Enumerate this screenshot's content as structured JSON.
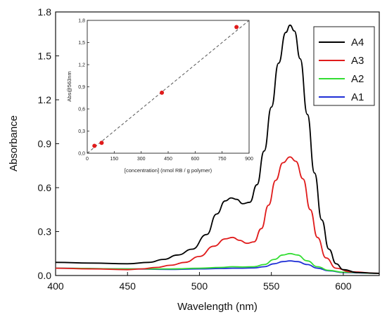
{
  "chart_data": [
    {
      "type": "line",
      "title": "",
      "xlabel": "Wavelength (nm)",
      "ylabel": "Absorbance",
      "xlim": [
        400,
        625
      ],
      "ylim": [
        0.0,
        1.8
      ],
      "xticks": [
        "400",
        "450",
        "500",
        "550",
        "600"
      ],
      "xtick_values": [
        400,
        450,
        500,
        550,
        600
      ],
      "yticks": [
        "0.0",
        "0.3",
        "0.6",
        "0.9",
        "1.2",
        "1.5",
        "1.8"
      ],
      "ytick_values": [
        0.0,
        0.3,
        0.6,
        0.9,
        1.2,
        1.5,
        1.8
      ],
      "legend_position": "top-right",
      "grid": false,
      "series": [
        {
          "name": "A4",
          "color": "#000000",
          "x": [
            400,
            425,
            450,
            465,
            475,
            485,
            495,
            505,
            512,
            518,
            522,
            526,
            530,
            535,
            540,
            545,
            550,
            555,
            560,
            563,
            566,
            570,
            575,
            580,
            585,
            590,
            595,
            600,
            610,
            625
          ],
          "y": [
            0.09,
            0.085,
            0.08,
            0.09,
            0.11,
            0.14,
            0.18,
            0.28,
            0.42,
            0.51,
            0.53,
            0.52,
            0.49,
            0.5,
            0.62,
            0.85,
            1.15,
            1.45,
            1.66,
            1.71,
            1.67,
            1.48,
            1.1,
            0.7,
            0.38,
            0.18,
            0.08,
            0.04,
            0.02,
            0.015
          ]
        },
        {
          "name": "A3",
          "color": "#e01b1b",
          "x": [
            400,
            425,
            450,
            460,
            470,
            480,
            490,
            500,
            510,
            518,
            523,
            528,
            533,
            538,
            543,
            548,
            553,
            558,
            563,
            567,
            572,
            577,
            582,
            588,
            595,
            605,
            625
          ],
          "y": [
            0.05,
            0.045,
            0.04,
            0.045,
            0.055,
            0.07,
            0.09,
            0.13,
            0.2,
            0.25,
            0.26,
            0.24,
            0.22,
            0.23,
            0.32,
            0.48,
            0.65,
            0.77,
            0.81,
            0.78,
            0.66,
            0.45,
            0.26,
            0.12,
            0.05,
            0.025,
            0.015
          ]
        },
        {
          "name": "A2",
          "color": "#33dd33",
          "x": [
            400,
            450,
            480,
            500,
            515,
            523,
            530,
            538,
            545,
            552,
            558,
            563,
            568,
            575,
            582,
            590,
            600,
            625
          ],
          "y": [
            0.05,
            0.045,
            0.045,
            0.05,
            0.055,
            0.06,
            0.058,
            0.06,
            0.075,
            0.11,
            0.14,
            0.15,
            0.14,
            0.1,
            0.06,
            0.035,
            0.022,
            0.015
          ]
        },
        {
          "name": "A1",
          "color": "#1f2fd6",
          "x": [
            400,
            450,
            480,
            500,
            515,
            523,
            530,
            538,
            545,
            552,
            558,
            563,
            568,
            575,
            582,
            590,
            600,
            625
          ],
          "y": [
            0.05,
            0.045,
            0.042,
            0.045,
            0.048,
            0.05,
            0.05,
            0.052,
            0.06,
            0.08,
            0.095,
            0.1,
            0.095,
            0.075,
            0.05,
            0.032,
            0.02,
            0.015
          ]
        }
      ]
    },
    {
      "type": "scatter",
      "title": "",
      "xlabel": "[concentration] (nmol RB / g polymer)",
      "ylabel": "Abs@563nm",
      "xlim": [
        0,
        900
      ],
      "ylim": [
        0.0,
        1.8
      ],
      "xticks": [
        "0",
        "150",
        "300",
        "450",
        "600",
        "750",
        "900"
      ],
      "xtick_values": [
        0,
        150,
        300,
        450,
        600,
        750,
        900
      ],
      "yticks": [
        "0,0",
        "0,3",
        "0,6",
        "0,9",
        "1,2",
        "1,5",
        "1,8"
      ],
      "ytick_values": [
        0.0,
        0.3,
        0.6,
        0.9,
        1.2,
        1.5,
        1.8
      ],
      "grid": false,
      "points": {
        "x": [
          40,
          80,
          415,
          830
        ],
        "y": [
          0.1,
          0.14,
          0.82,
          1.71
        ],
        "color": "#e01b1b"
      },
      "fit_line": {
        "x": [
          0,
          900
        ],
        "y": [
          0.0,
          1.845
        ],
        "style": "dashed",
        "color": "#555555"
      }
    }
  ]
}
